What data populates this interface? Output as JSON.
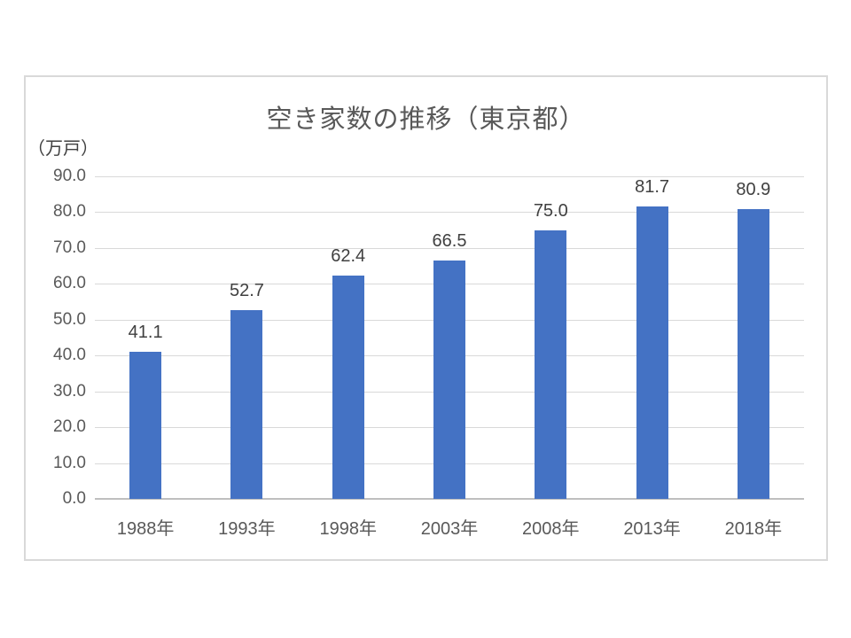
{
  "chart_data": {
    "type": "bar",
    "title": "空き家数の推移（東京都）",
    "unit_label": "（万戸）",
    "categories": [
      "1988年",
      "1993年",
      "1998年",
      "2003年",
      "2008年",
      "2013年",
      "2018年"
    ],
    "values": [
      41.1,
      52.7,
      62.4,
      66.5,
      75.0,
      81.7,
      80.9
    ],
    "data_labels": [
      "41.1",
      "52.7",
      "62.4",
      "66.5",
      "75.0",
      "81.7",
      "80.9"
    ],
    "ytick_labels": [
      "90.0",
      "80.0",
      "70.0",
      "60.0",
      "50.0",
      "40.0",
      "30.0",
      "20.0",
      "10.0",
      "0.0"
    ],
    "ylim": [
      0,
      90
    ],
    "ytick_step": 10,
    "xlabel": "",
    "ylabel": "（万戸）",
    "grid": true,
    "legend": "none",
    "colors": {
      "bar": "#4472C4",
      "title": "#595959",
      "axis_text": "#595959",
      "data_label_text": "#404040",
      "gridline": "#d9d9d9",
      "axis_line": "#bfbfbf",
      "frame_border": "#d9d9d9",
      "background": "#ffffff"
    }
  }
}
